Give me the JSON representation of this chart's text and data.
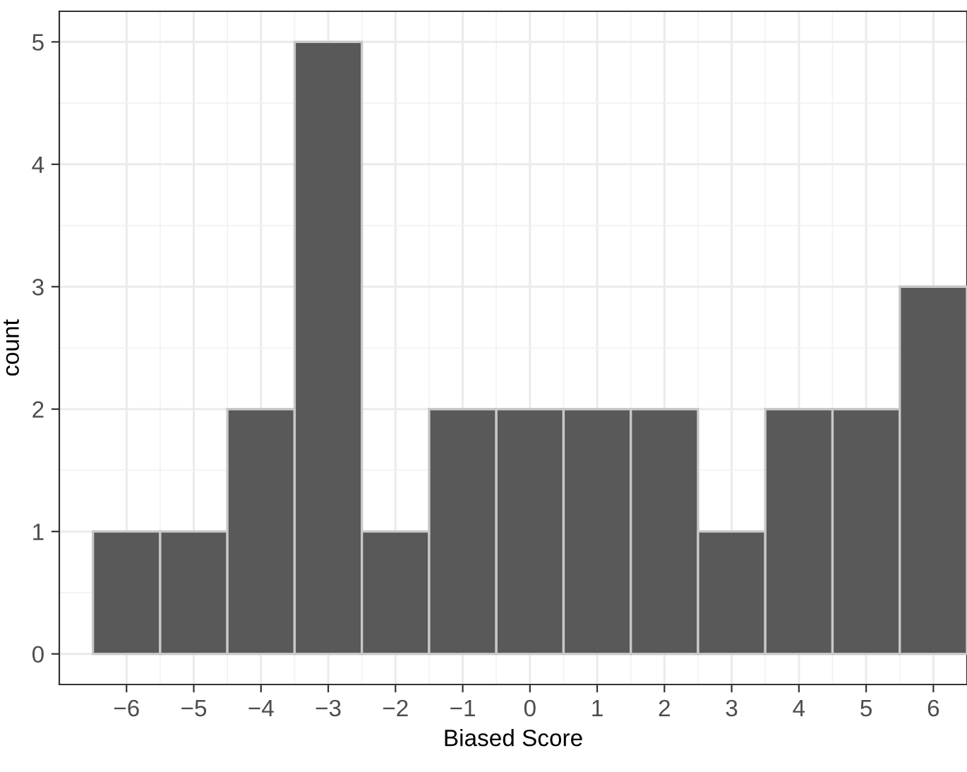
{
  "chart_data": {
    "type": "histogram",
    "xlabel": "Biased Score",
    "ylabel": "count",
    "bins": [
      -6.5,
      -5.5,
      -4.5,
      -3.5,
      -2.5,
      -1.5,
      -0.5,
      0.5,
      1.5,
      2.5,
      3.5,
      4.5,
      5.5,
      6.5
    ],
    "values": [
      1,
      1,
      2,
      5,
      1,
      2,
      2,
      2,
      2,
      1,
      2,
      2,
      3
    ],
    "color": "#595959",
    "xlim": [
      -7.0,
      6.5
    ],
    "ylim": [
      -0.25,
      5.25
    ],
    "xticks": [
      {
        "value": -6,
        "label": "−6"
      },
      {
        "value": -5,
        "label": "−5"
      },
      {
        "value": -4,
        "label": "−4"
      },
      {
        "value": -3,
        "label": "−3"
      },
      {
        "value": -2,
        "label": "−2"
      },
      {
        "value": -1,
        "label": "−1"
      },
      0,
      1,
      2,
      3,
      4,
      5,
      6
    ],
    "yticks": [
      0,
      1,
      2,
      3,
      4,
      5
    ],
    "grid": true
  }
}
